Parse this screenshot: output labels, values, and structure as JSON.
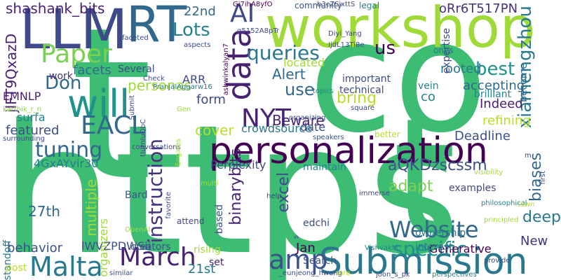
{
  "words": [
    {
      "text": "https",
      "color": "#3dbc74"
    },
    {
      "text": "t",
      "color": "#3dbc74"
    },
    {
      "text": "co",
      "color": "#3dbc74"
    },
    {
      "text": "t",
      "color": "#3dbc74"
    },
    {
      "text": "workshop",
      "color": "#a0da39"
    },
    {
      "text": "personalization",
      "color": "#440154"
    },
    {
      "text": "LLM",
      "color": "#3e4a89"
    },
    {
      "text": "RT",
      "color": "#31688e"
    },
    {
      "text": "Submission",
      "color": "#2a788e"
    },
    {
      "text": "Website",
      "color": "#31688e"
    },
    {
      "text": "will",
      "color": "#21918c"
    },
    {
      "text": "data",
      "color": "#482173"
    },
    {
      "text": "AI",
      "color": "#3e4a89"
    },
    {
      "text": "Malta",
      "color": "#2a788e"
    },
    {
      "text": "March",
      "color": "#482173"
    },
    {
      "text": "amp",
      "color": "#3b528b"
    },
    {
      "text": "NYT",
      "color": "#482475"
    },
    {
      "text": "EACL",
      "color": "#31688e"
    },
    {
      "text": "Paper",
      "color": "#7ad151"
    },
    {
      "text": "specific",
      "color": "#21918c"
    },
    {
      "text": "tuning",
      "color": "#31688e"
    },
    {
      "text": "instruction",
      "color": "#46327e"
    },
    {
      "text": "queries",
      "color": "#2a788e"
    },
    {
      "text": "xiamengzhou",
      "color": "#2a788e"
    },
    {
      "text": "biases",
      "color": "#31688e"
    },
    {
      "text": "aQKDzscssm",
      "color": "#3b528b"
    },
    {
      "text": "adapt",
      "color": "#7ad151"
    },
    {
      "text": "Lots",
      "color": "#26828e"
    },
    {
      "text": "best",
      "color": "#21918c"
    },
    {
      "text": "us",
      "color": "#440154"
    },
    {
      "text": "shashank_bits",
      "color": "#482173"
    },
    {
      "text": "deep",
      "color": "#2a788e"
    },
    {
      "text": "Don",
      "color": "#31688e"
    },
    {
      "text": "use",
      "color": "#31688e"
    },
    {
      "text": "multiple",
      "color": "#a0da39"
    },
    {
      "text": "excel",
      "color": "#3e4a89"
    },
    {
      "text": "binarybits",
      "color": "#482475"
    },
    {
      "text": "rooted",
      "color": "#2a788e"
    },
    {
      "text": "facets",
      "color": "#31688e"
    },
    {
      "text": "personas",
      "color": "#a0da39"
    },
    {
      "text": "Alert",
      "color": "#31688e"
    },
    {
      "text": "Beware",
      "color": "#482475"
    },
    {
      "text": "bring",
      "color": "#b8de29"
    },
    {
      "text": "refining",
      "color": "#b8de29"
    },
    {
      "text": "Deadline",
      "color": "#3b528b"
    },
    {
      "text": "Generative",
      "color": "#440154"
    },
    {
      "text": "Indeed",
      "color": "#482173"
    },
    {
      "text": "accepting",
      "color": "#31688e"
    },
    {
      "text": "featured",
      "color": "#3e4a89"
    },
    {
      "text": "cover",
      "color": "#b8de29"
    },
    {
      "text": "behavior",
      "color": "#3b528b"
    },
    {
      "text": "New",
      "color": "#46327e"
    },
    {
      "text": "Jan",
      "color": "#440154"
    },
    {
      "text": "21st",
      "color": "#2a788e"
    },
    {
      "text": "27th",
      "color": "#31688e"
    },
    {
      "text": "22nd",
      "color": "#31688e"
    },
    {
      "text": "co",
      "color": "#26828e"
    },
    {
      "text": "jlFT9QxazD",
      "color": "#482173"
    },
    {
      "text": "EMNLP",
      "color": "#482173"
    },
    {
      "text": "oRr6T517PN",
      "color": "#46327e"
    },
    {
      "text": "surfa",
      "color": "#26828e"
    },
    {
      "text": "4GxAYvir30",
      "color": "#2a788e"
    },
    {
      "text": "ARR",
      "color": "#3e4a89"
    },
    {
      "text": "form",
      "color": "#3e4a89"
    },
    {
      "text": "date",
      "color": "#3e4a89"
    },
    {
      "text": "located",
      "color": "#a0da39"
    },
    {
      "text": "crowdsource",
      "color": "#2a788e"
    },
    {
      "text": "Perplexity",
      "color": "#3e4a89"
    },
    {
      "text": "maintain",
      "color": "#26828e"
    },
    {
      "text": "edchi",
      "color": "#3e4a89"
    },
    {
      "text": "Search",
      "color": "#3b528b"
    },
    {
      "text": "ownership",
      "color": "#2a788e"
    },
    {
      "text": "interest",
      "color": "#2a788e"
    },
    {
      "text": "examples",
      "color": "#3e4a89"
    },
    {
      "text": "Bard",
      "color": "#3b528b"
    },
    {
      "text": "creators",
      "color": "#3b528b"
    },
    {
      "text": "rising",
      "color": "#a0da39"
    },
    {
      "text": "set",
      "color": "#482475"
    },
    {
      "text": "based",
      "color": "#3b528b"
    },
    {
      "text": "lWVZPDWSii",
      "color": "#3b528b"
    },
    {
      "text": "organizers",
      "color": "#a0da39"
    },
    {
      "text": "standoff",
      "color": "#2a788e"
    },
    {
      "text": "post",
      "color": "#b8de29"
    },
    {
      "text": "Several",
      "color": "#3e4a89"
    },
    {
      "text": "work",
      "color": "#46327e"
    },
    {
      "text": "important",
      "color": "#3e4a89"
    },
    {
      "text": "technical",
      "color": "#3e4a89"
    },
    {
      "text": "vein",
      "color": "#26828e"
    },
    {
      "text": "brilliant",
      "color": "#26828e"
    },
    {
      "text": "become",
      "color": "#31688e"
    },
    {
      "text": "expertise",
      "color": "#3e4a89"
    },
    {
      "text": "ones",
      "color": "#2a788e"
    },
    {
      "text": "legal",
      "color": "#26828e"
    },
    {
      "text": "community",
      "color": "#3b528b"
    },
    {
      "text": "Gi7ihA8yfO",
      "color": "#440154"
    },
    {
      "text": "b3cZSixttS",
      "color": "#3e4a89"
    },
    {
      "text": "Diyi_Yang",
      "color": "#3e4a89"
    },
    {
      "text": "IjdL13Ti8e",
      "color": "#3b528b"
    },
    {
      "text": "q5152A8pTr",
      "color": "#3e4a89"
    },
    {
      "text": "aspects",
      "color": "#3e4a89"
    },
    {
      "text": "faceted",
      "color": "#3e4a89"
    },
    {
      "text": "ashwinkalyan7",
      "color": "#440154"
    },
    {
      "text": "Check",
      "color": "#3e4a89"
    },
    {
      "text": "Submit",
      "color": "#3e4a89"
    },
    {
      "text": "PranjalAggarw16",
      "color": "#2a788e"
    },
    {
      "text": "Gen",
      "color": "#a0da39"
    },
    {
      "text": "karthik_r_n",
      "color": "#8fd744"
    },
    {
      "text": "tIurnluQbC",
      "color": "#3e4a89"
    },
    {
      "text": "surrounding",
      "color": "#3e4a89"
    },
    {
      "text": "conversations",
      "color": "#3e4a89"
    },
    {
      "text": "Engines",
      "color": "#a0da39"
    },
    {
      "text": "better",
      "color": "#b8de29"
    },
    {
      "text": "speakers",
      "color": "#3b528b"
    },
    {
      "text": "organizing",
      "color": "#3e4a89"
    },
    {
      "text": "square",
      "color": "#3e4a89"
    },
    {
      "text": "topics",
      "color": "#26828e"
    },
    {
      "text": "m",
      "color": "#3e4a89"
    },
    {
      "text": "first",
      "color": "#3e4a89"
    },
    {
      "text": "visibility",
      "color": "#a0da39"
    },
    {
      "text": "multi",
      "color": "#a0da39"
    },
    {
      "text": "help",
      "color": "#3e4a89"
    },
    {
      "text": "immerse",
      "color": "#3e4a89"
    },
    {
      "text": "philosophical",
      "color": "#26828e"
    },
    {
      "text": "town",
      "color": "#b8de29"
    },
    {
      "text": "principled",
      "color": "#a0da39"
    },
    {
      "text": "favorite",
      "color": "#3e4a89"
    },
    {
      "text": "OpenAI",
      "color": "#a0da39"
    },
    {
      "text": "attend",
      "color": "#3e4a89"
    },
    {
      "text": "s",
      "color": "#3e4a89"
    },
    {
      "text": "VishvakM",
      "color": "#26828e"
    },
    {
      "text": "provide",
      "color": "#3e4a89"
    },
    {
      "text": "similar",
      "color": "#3e4a89"
    },
    {
      "text": "_eunjeong_hwang",
      "color": "#3e4a89"
    },
    {
      "text": "sure",
      "color": "#b8de29"
    },
    {
      "text": "joon_s_pk",
      "color": "#3e4a89"
    },
    {
      "text": "perspectives",
      "color": "#26828e"
    },
    {
      "text": "Ashish_S_AI",
      "color": "#26828e"
    }
  ]
}
